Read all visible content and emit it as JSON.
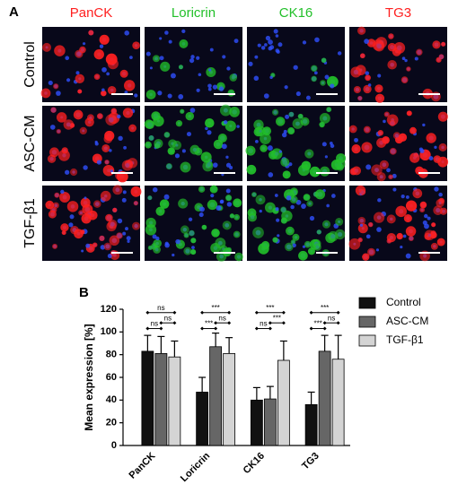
{
  "panel_a": {
    "label": "A",
    "columns": [
      {
        "name": "PanCK",
        "color": "#ff2020"
      },
      {
        "name": "Loricrin",
        "color": "#22c02a"
      },
      {
        "name": "CK16",
        "color": "#22c02a"
      },
      {
        "name": "TG3",
        "color": "#ff2020"
      }
    ],
    "rows": [
      "Control",
      "ASC-CM",
      "TGF-β1"
    ]
  },
  "chart_data": {
    "type": "bar",
    "label": "B",
    "y_label": "Mean expression [%]",
    "categories": [
      "PanCK",
      "Loricrin",
      "CK16",
      "TG3"
    ],
    "series": [
      {
        "name": "Control",
        "color": "#111111",
        "values": [
          83,
          47,
          40,
          36
        ],
        "errors": [
          14,
          13,
          11,
          11
        ]
      },
      {
        "name": "ASC-CM",
        "color": "#666666",
        "values": [
          81,
          87,
          41,
          83
        ],
        "errors": [
          15,
          12,
          11,
          14
        ]
      },
      {
        "name": "TGF-β1",
        "color": "#d4d4d4",
        "values": [
          78,
          81,
          75,
          76
        ],
        "errors": [
          14,
          14,
          17,
          21
        ]
      }
    ],
    "significance": [
      [
        "ns",
        "ns",
        "ns"
      ],
      [
        "***",
        "ns",
        "***"
      ],
      [
        "ns",
        "***",
        "***"
      ],
      [
        "***",
        "ns",
        "***"
      ]
    ],
    "ylim": [
      0,
      120
    ],
    "yticks": [
      0,
      20,
      40,
      60,
      80,
      100,
      120
    ],
    "legend": "right"
  }
}
